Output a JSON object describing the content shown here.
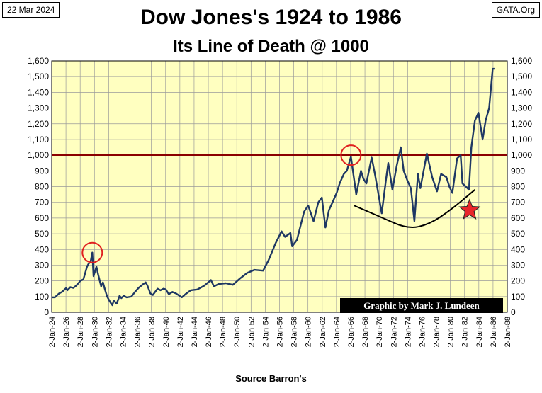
{
  "header": {
    "date": "22 Mar 2024",
    "site": "GATA.Org"
  },
  "colors": {
    "plot_background": "#FFFFC0",
    "series_line": "#1F3864",
    "reference_line": "#8B0000",
    "highlight_circle": "#E02020",
    "star_fill": "#E8262B",
    "trend_curve": "#000000",
    "credit_background": "#000000"
  },
  "chart_data": {
    "type": "line",
    "title": "Dow Jones's 1924 to 1986",
    "subtitle": "Its Line of Death @ 1000",
    "xlabel": "Source Barron's",
    "ylabel": "",
    "credit": "Graphic by Mark J. Lundeen",
    "ylim": [
      0,
      1600
    ],
    "xlim": [
      "1924-01-02",
      "1988-01-02"
    ],
    "yticks": [
      "0",
      "100",
      "200",
      "300",
      "400",
      "500",
      "600",
      "700",
      "800",
      "900",
      "1,000",
      "1,100",
      "1,200",
      "1,300",
      "1,400",
      "1,500",
      "1,600"
    ],
    "xticks": [
      "2-Jan-24",
      "2-Jan-26",
      "2-Jan-28",
      "2-Jan-30",
      "2-Jan-32",
      "2-Jan-34",
      "2-Jan-36",
      "2-Jan-38",
      "2-Jan-40",
      "2-Jan-42",
      "2-Jan-44",
      "2-Jan-46",
      "2-Jan-48",
      "2-Jan-50",
      "2-Jan-52",
      "2-Jan-54",
      "2-Jan-56",
      "2-Jan-58",
      "2-Jan-60",
      "2-Jan-62",
      "2-Jan-64",
      "2-Jan-66",
      "2-Jan-68",
      "2-Jan-70",
      "2-Jan-72",
      "2-Jan-74",
      "2-Jan-76",
      "2-Jan-78",
      "2-Jan-80",
      "2-Jan-82",
      "2-Jan-84",
      "2-Jan-86",
      "2-Jan-88"
    ],
    "grid": true,
    "legend": "none",
    "dual_y_axis": true,
    "reference_line": 1000,
    "series": [
      {
        "x": [
          "1924-01",
          "1924-06",
          "1925-01",
          "1925-06",
          "1926-01",
          "1926-03",
          "1926-08",
          "1927-01",
          "1927-06",
          "1928-01",
          "1928-06",
          "1928-12",
          "1929-03",
          "1929-06",
          "1929-09",
          "1929-11",
          "1930-04",
          "1930-07",
          "1930-12",
          "1931-03",
          "1931-06",
          "1931-10",
          "1932-01",
          "1932-04",
          "1932-07",
          "1932-09",
          "1933-02",
          "1933-07",
          "1933-10",
          "1934-02",
          "1934-07",
          "1935-03",
          "1935-09",
          "1936-03",
          "1936-11",
          "1937-03",
          "1937-06",
          "1937-11",
          "1938-03",
          "1938-11",
          "1939-04",
          "1939-09",
          "1940-01",
          "1940-06",
          "1940-12",
          "1941-06",
          "1942-04",
          "1942-10",
          "1943-07",
          "1944-06",
          "1945-06",
          "1946-05",
          "1946-10",
          "1947-06",
          "1948-06",
          "1949-06",
          "1950-06",
          "1951-06",
          "1952-06",
          "1953-09",
          "1954-06",
          "1955-06",
          "1956-04",
          "1956-10",
          "1957-07",
          "1957-10",
          "1958-06",
          "1959-06",
          "1960-01",
          "1960-10",
          "1961-06",
          "1961-12",
          "1962-06",
          "1962-12",
          "1963-06",
          "1964-01",
          "1964-06",
          "1965-01",
          "1965-06",
          "1966-01",
          "1966-10",
          "1967-06",
          "1967-10",
          "1968-03",
          "1968-12",
          "1969-06",
          "1970-05",
          "1970-12",
          "1971-04",
          "1971-11",
          "1972-06",
          "1973-01",
          "1973-06",
          "1973-12",
          "1974-06",
          "1974-12",
          "1975-06",
          "1975-10",
          "1976-09",
          "1977-06",
          "1978-02",
          "1978-09",
          "1979-06",
          "1979-11",
          "1980-04",
          "1980-12",
          "1981-06",
          "1981-09",
          "1982-03",
          "1982-08",
          "1982-12",
          "1983-06",
          "1983-12",
          "1984-07",
          "1984-12",
          "1985-06",
          "1985-12",
          "1986-03"
        ],
        "y": [
          95,
          95,
          120,
          130,
          155,
          140,
          160,
          155,
          170,
          200,
          210,
          290,
          310,
          320,
          380,
          230,
          290,
          240,
          165,
          190,
          150,
          100,
          80,
          60,
          45,
          75,
          55,
          105,
          90,
          105,
          95,
          100,
          130,
          155,
          180,
          190,
          170,
          120,
          110,
          150,
          140,
          150,
          145,
          115,
          130,
          120,
          95,
          115,
          140,
          145,
          170,
          205,
          165,
          180,
          185,
          175,
          215,
          250,
          270,
          265,
          330,
          440,
          515,
          480,
          505,
          420,
          460,
          640,
          680,
          580,
          700,
          730,
          540,
          650,
          700,
          760,
          820,
          880,
          900,
          990,
          750,
          900,
          850,
          820,
          985,
          870,
          630,
          840,
          950,
          780,
          930,
          1050,
          900,
          840,
          790,
          580,
          880,
          790,
          1010,
          860,
          770,
          880,
          860,
          800,
          760,
          980,
          1000,
          820,
          800,
          780,
          1050,
          1220,
          1270,
          1100,
          1220,
          1300,
          1550,
          1550
        ]
      }
    ],
    "annotations": [
      {
        "type": "circle",
        "x": "1929-09",
        "y": 380
      },
      {
        "type": "circle",
        "x": "1966-01",
        "y": 1000
      },
      {
        "type": "curve",
        "points": [
          [
            "1966-06",
            680
          ],
          [
            "1970-01",
            610
          ],
          [
            "1974-01",
            530
          ],
          [
            "1977-01",
            560
          ],
          [
            "1980-01",
            650
          ],
          [
            "1983-06",
            780
          ]
        ]
      },
      {
        "type": "star",
        "x": "1982-09",
        "y": 650
      }
    ]
  }
}
